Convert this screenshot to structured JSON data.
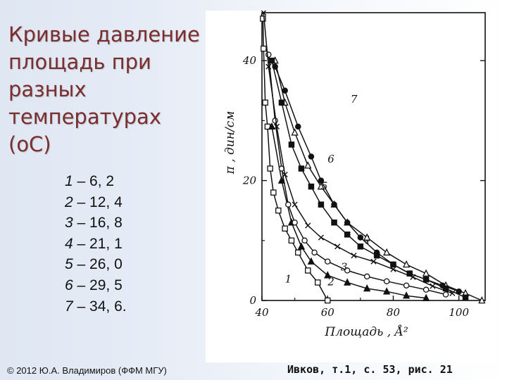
{
  "slide": {
    "title": "Кривые давление площадь при разных температурах (оС)",
    "legend": [
      {
        "num": "1",
        "text": " – 6, 2"
      },
      {
        "num": "2",
        "text": " – 12, 4"
      },
      {
        "num": "3",
        "text": " – 16, 8"
      },
      {
        "num": "4",
        "text": " – 21, 1"
      },
      {
        "num": "5",
        "text": " – 26, 0"
      },
      {
        "num": "6",
        "text": " – 29, 5"
      },
      {
        "num": "7",
        "text": " – 34, 6."
      }
    ],
    "copyright": "© 2012 Ю.А. Владимиров (ФФМ МГУ)",
    "citation": "Ивков, т.1, с. 53, рис. 21"
  },
  "chart_data": {
    "type": "line",
    "xlabel": "Площадь , Å²",
    "ylabel": "π , дин/см",
    "xlim": [
      40,
      108
    ],
    "ylim": [
      0,
      48
    ],
    "xticks": [
      40,
      60,
      80,
      100
    ],
    "yticks": [
      0,
      20,
      40
    ],
    "grid": false,
    "series": [
      {
        "name": "1",
        "marker": "square-open",
        "x": [
          40.3,
          40.5,
          41,
          41.7,
          42.5,
          43.5,
          45,
          47,
          49,
          51,
          54,
          57,
          60
        ],
        "y": [
          47,
          42,
          33,
          29,
          22,
          18,
          15,
          12,
          10,
          8,
          5,
          3,
          0
        ]
      },
      {
        "name": "2",
        "marker": "triangle-filled",
        "x": [
          43,
          46,
          49,
          52,
          55,
          60,
          66,
          72,
          78,
          84,
          90
        ],
        "y": [
          29,
          20,
          13,
          9,
          6.5,
          4.2,
          3,
          2,
          1.5,
          0.8,
          0.4
        ]
      },
      {
        "name": "3",
        "marker": "circle-open",
        "x": [
          42,
          44,
          46,
          48,
          50,
          53,
          56,
          60,
          66,
          72,
          78,
          84,
          90,
          96
        ],
        "y": [
          41,
          30,
          22,
          16,
          13,
          10,
          8,
          6.5,
          5,
          4,
          3.2,
          2.5,
          1.8,
          1
        ]
      },
      {
        "name": "4",
        "marker": "cross",
        "x": [
          40.5,
          42,
          44.5,
          47,
          50,
          54,
          58,
          63,
          68,
          74,
          80,
          86,
          92,
          98
        ],
        "y": [
          48,
          39,
          29,
          21,
          16,
          12.5,
          10.5,
          9,
          7.5,
          6.5,
          5.2,
          3.9,
          2.4,
          1.2
        ]
      },
      {
        "name": "5",
        "marker": "triangle-open",
        "x": [
          44,
          47,
          50,
          54,
          58,
          62,
          66,
          72,
          78,
          84,
          90,
          96,
          102,
          107
        ],
        "y": [
          40,
          33,
          28,
          22.5,
          19,
          16,
          13,
          10.5,
          8,
          6,
          4.5,
          2.5,
          1.2,
          0
        ]
      },
      {
        "name": "6",
        "marker": "square-filled",
        "x": [
          43,
          46,
          49,
          52,
          55,
          58,
          62,
          66,
          70,
          75,
          80,
          85,
          90,
          96,
          102
        ],
        "y": [
          40,
          33,
          26,
          22,
          19,
          16,
          13,
          11,
          9,
          7.5,
          6,
          4.5,
          3.5,
          2,
          0.5
        ]
      },
      {
        "name": "7",
        "marker": "circle-filled",
        "x": [
          44,
          47,
          51,
          55,
          58,
          62,
          66,
          70,
          75,
          80,
          85,
          90,
          95,
          100
        ],
        "y": [
          39,
          35,
          29,
          24,
          20,
          16,
          13,
          10.5,
          8,
          6,
          4.5,
          3.5,
          2.5,
          1.5
        ]
      }
    ]
  }
}
